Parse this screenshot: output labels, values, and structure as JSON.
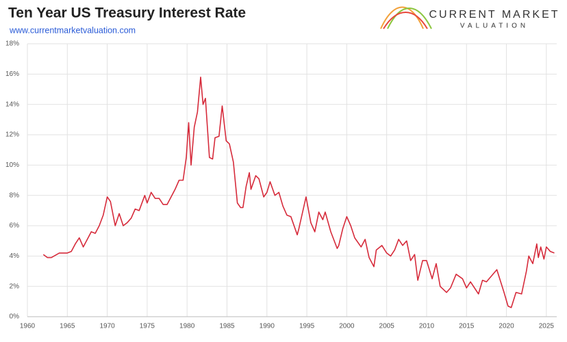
{
  "chart_data": {
    "type": "line",
    "title": "Ten Year US Treasury Interest Rate",
    "subtitle": "www.currentmarketvaluation.com",
    "brand": "CURRENT MARKET",
    "brand_sub": "VALUATION",
    "xlim": [
      1960,
      2026.3
    ],
    "xticks": [
      1960,
      1965,
      1970,
      1975,
      1980,
      1985,
      1990,
      1995,
      2000,
      2005,
      2010,
      2015,
      2020,
      2025
    ],
    "ylim": [
      0,
      18
    ],
    "yticks": [
      {
        "value": 0,
        "label": "0%"
      },
      {
        "value": 2,
        "label": "2%"
      },
      {
        "value": 4,
        "label": "4%"
      },
      {
        "value": 6,
        "label": "6%"
      },
      {
        "value": 8,
        "label": "8%"
      },
      {
        "value": 10,
        "label": "10%"
      },
      {
        "value": 12,
        "label": "12%"
      },
      {
        "value": 14,
        "label": "14%"
      },
      {
        "value": 16,
        "label": "16%"
      },
      {
        "value": 18,
        "label": "18%"
      }
    ],
    "grid": true,
    "series": [
      {
        "color": "#d62a3a",
        "x": [
          1962.0,
          1962.5,
          1963,
          1964,
          1965,
          1965.5,
          1966,
          1966.5,
          1967,
          1967.5,
          1968,
          1968.5,
          1969,
          1969.5,
          1970,
          1970.4,
          1971,
          1971.5,
          1972,
          1972.5,
          1973,
          1973.5,
          1974,
          1974.7,
          1975,
          1975.5,
          1976,
          1976.5,
          1977,
          1977.5,
          1978,
          1978.5,
          1979,
          1979.5,
          1979.9,
          1980.2,
          1980.5,
          1980.9,
          1981.3,
          1981.7,
          1982,
          1982.3,
          1982.8,
          1983.2,
          1983.5,
          1984,
          1984.4,
          1984.9,
          1985.3,
          1985.8,
          1986.3,
          1986.7,
          1987,
          1987.4,
          1987.8,
          1988,
          1988.6,
          1989,
          1989.6,
          1990,
          1990.4,
          1991,
          1991.5,
          1992,
          1992.5,
          1993,
          1993.8,
          1994,
          1994.9,
          1995.5,
          1996,
          1996.5,
          1997,
          1997.3,
          1998,
          1998.8,
          1999,
          1999.5,
          2000,
          2000.5,
          2001,
          2001.8,
          2002.3,
          2002.8,
          2003.4,
          2003.7,
          2004.4,
          2005,
          2005.5,
          2006,
          2006.5,
          2007,
          2007.5,
          2008,
          2008.5,
          2008.9,
          2009.5,
          2010,
          2010.7,
          2011.2,
          2011.7,
          2012.5,
          2013,
          2013.7,
          2014.5,
          2015,
          2015.5,
          2016.5,
          2017,
          2017.5,
          2018.8,
          2019.7,
          2020.2,
          2020.6,
          2021.2,
          2021.9,
          2022.5,
          2022.8,
          2023.3,
          2023.8,
          2024,
          2024.3,
          2024.7,
          2025,
          2025.5,
          2026
        ],
        "values": [
          4.1,
          3.9,
          3.9,
          4.2,
          4.2,
          4.3,
          4.8,
          5.2,
          4.6,
          5.1,
          5.6,
          5.5,
          6.0,
          6.7,
          7.9,
          7.6,
          6.0,
          6.8,
          6.0,
          6.2,
          6.5,
          7.1,
          7.0,
          8.0,
          7.5,
          8.2,
          7.8,
          7.8,
          7.4,
          7.4,
          7.9,
          8.4,
          9.0,
          9.0,
          10.5,
          12.8,
          10.0,
          12.5,
          13.5,
          15.8,
          14.0,
          14.4,
          10.5,
          10.4,
          11.8,
          11.9,
          13.9,
          11.6,
          11.4,
          10.2,
          7.5,
          7.2,
          7.2,
          8.6,
          9.5,
          8.4,
          9.3,
          9.1,
          7.9,
          8.2,
          8.9,
          8.0,
          8.2,
          7.3,
          6.7,
          6.6,
          5.4,
          5.8,
          7.9,
          6.2,
          5.6,
          6.9,
          6.4,
          6.9,
          5.6,
          4.5,
          4.7,
          5.8,
          6.6,
          6.0,
          5.2,
          4.6,
          5.1,
          3.9,
          3.3,
          4.4,
          4.7,
          4.2,
          4.0,
          4.4,
          5.1,
          4.7,
          5.0,
          3.7,
          4.1,
          2.4,
          3.7,
          3.7,
          2.5,
          3.5,
          2.0,
          1.6,
          1.9,
          2.8,
          2.5,
          1.9,
          2.3,
          1.5,
          2.4,
          2.3,
          3.1,
          1.6,
          0.7,
          0.6,
          1.6,
          1.5,
          3.0,
          4.0,
          3.5,
          4.8,
          3.9,
          4.6,
          3.8,
          4.6,
          4.3,
          4.2
        ]
      }
    ]
  }
}
